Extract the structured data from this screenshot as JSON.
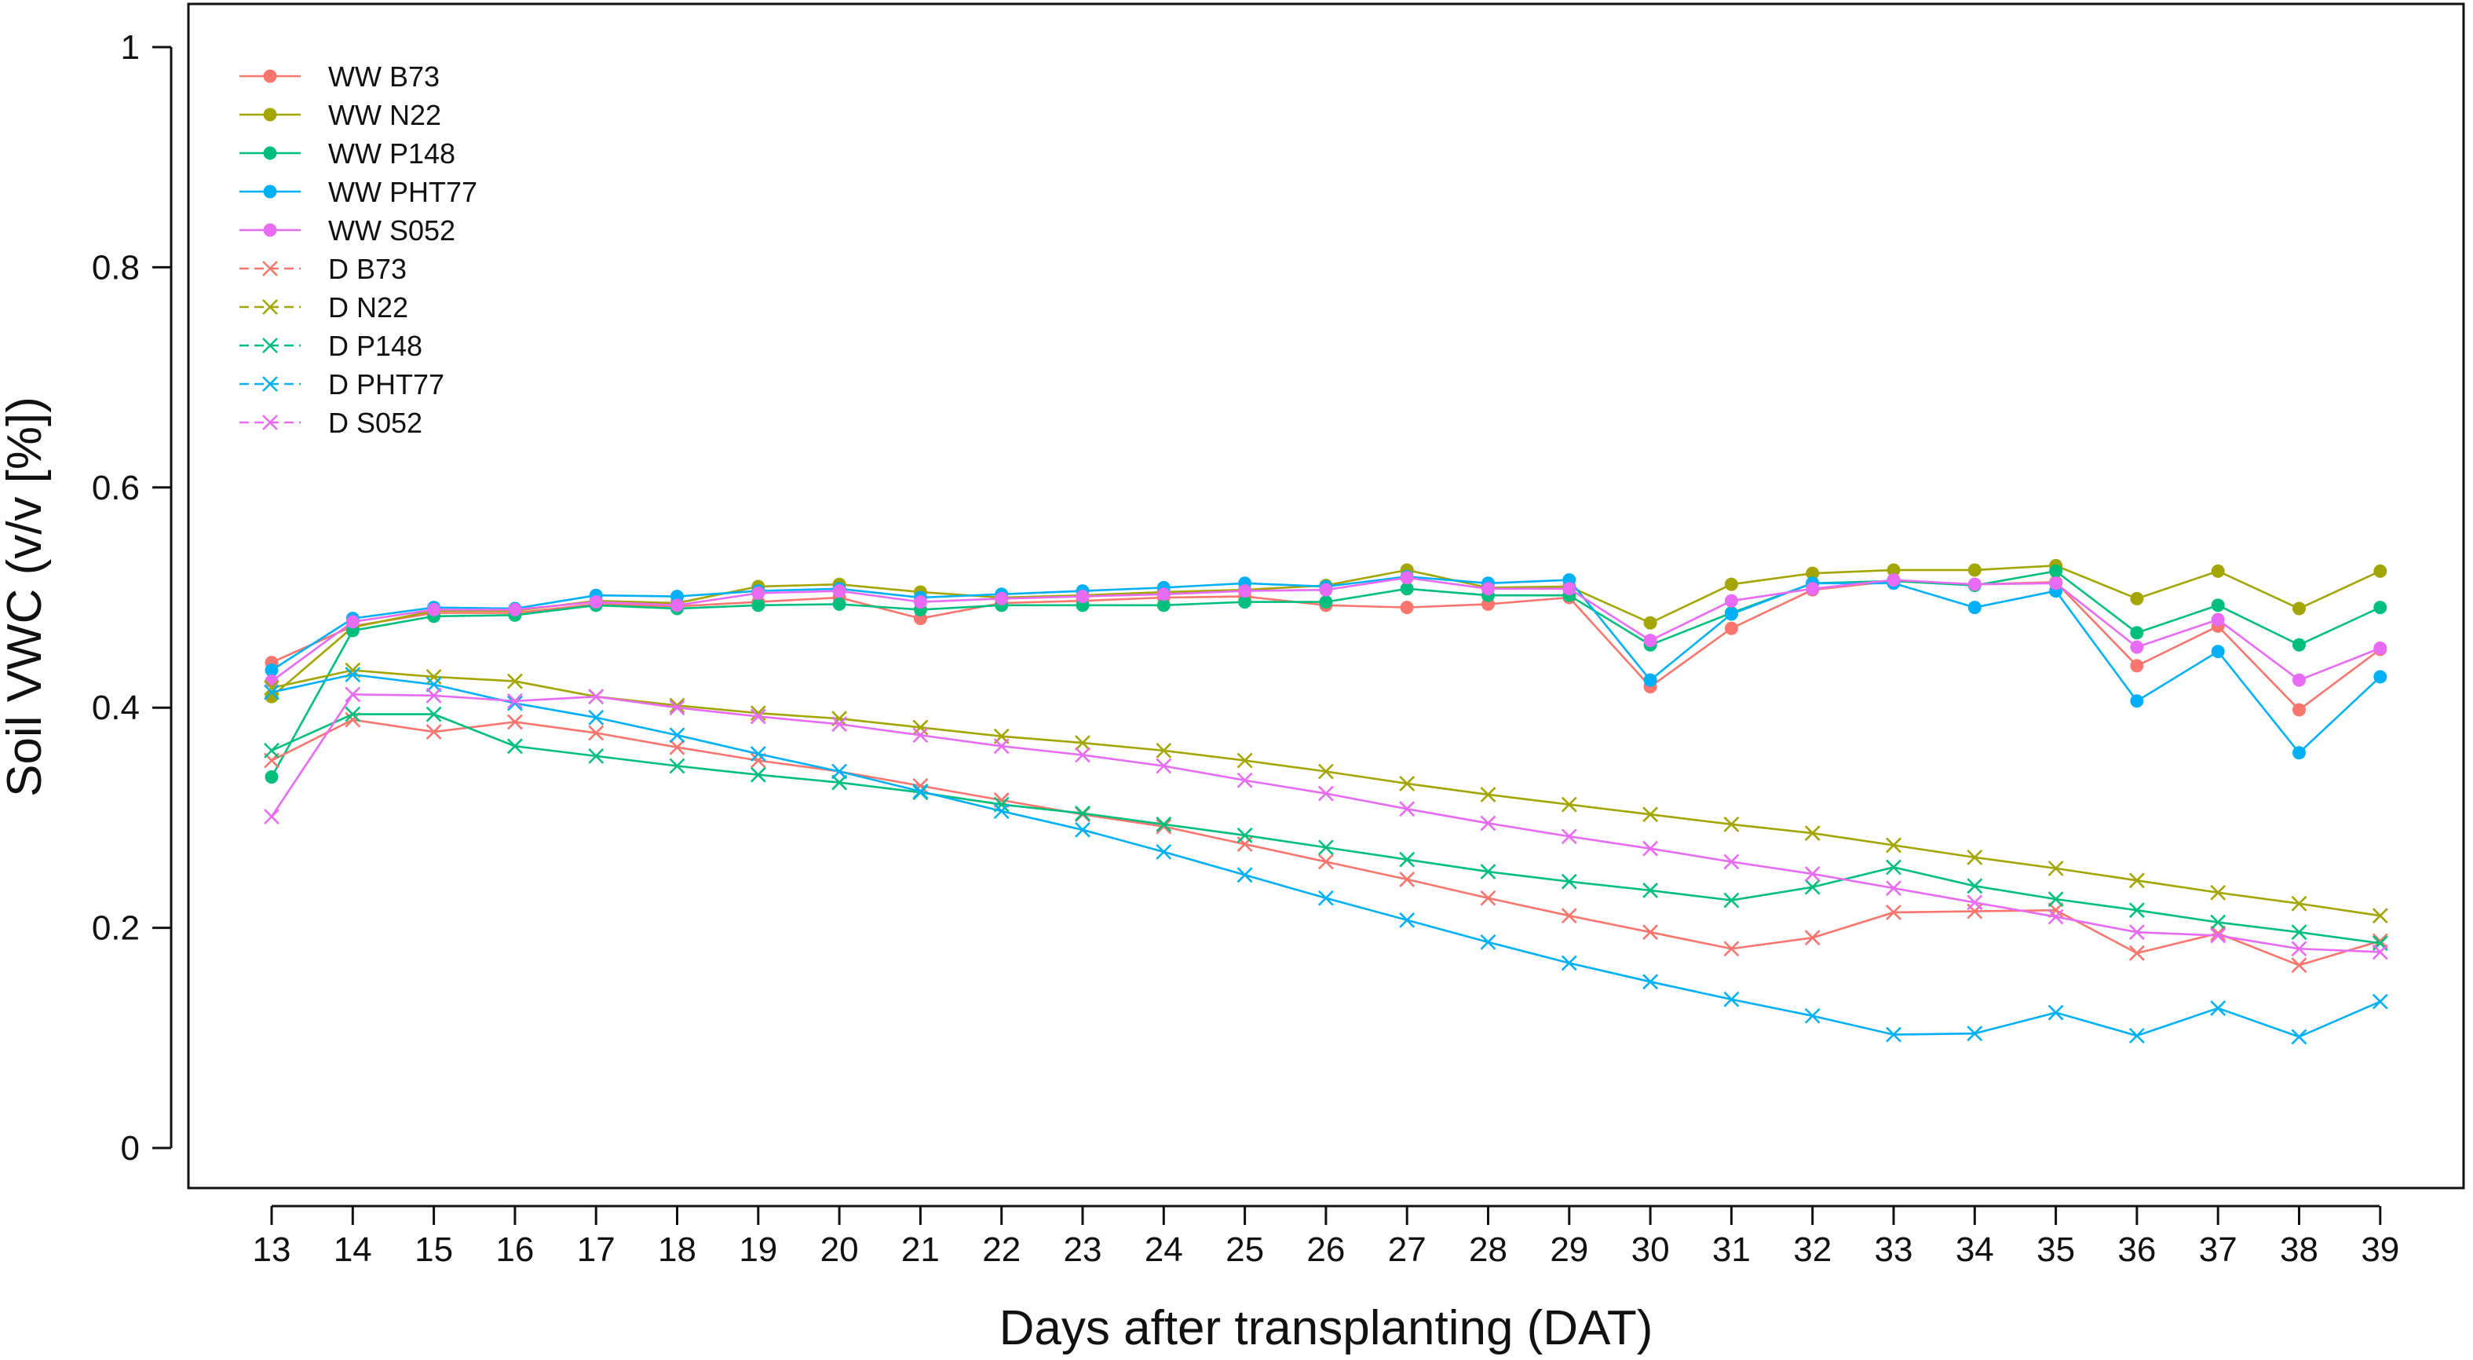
{
  "chart_data": {
    "type": "line",
    "title": "",
    "xlabel": "Days after transplanting (DAT)",
    "ylabel": "Soil VWC (v/v [%])",
    "x": [
      13,
      14,
      15,
      16,
      17,
      18,
      19,
      20,
      21,
      22,
      23,
      24,
      25,
      26,
      27,
      28,
      29,
      30,
      31,
      32,
      33,
      34,
      35,
      36,
      37,
      38,
      39
    ],
    "x_tick_labels": [
      "13",
      "14",
      "15",
      "16",
      "17",
      "18",
      "19",
      "20",
      "21",
      "22",
      "23",
      "24",
      "25",
      "26",
      "27",
      "28",
      "29",
      "30",
      "31",
      "32",
      "33",
      "34",
      "35",
      "36",
      "37",
      "38",
      "39"
    ],
    "ylim": [
      0,
      1
    ],
    "y_ticks": [
      0,
      0.2,
      0.4,
      0.6,
      0.8,
      1
    ],
    "y_tick_labels": [
      "0",
      "0.2",
      "0.4",
      "0.6",
      "0.8",
      "1"
    ],
    "grid": false,
    "legend_position": "top-left",
    "series": [
      {
        "name": "WW B73",
        "color": "#F8766D",
        "marker": "circle",
        "line": "solid",
        "values": [
          0.441,
          0.474,
          0.486,
          0.486,
          0.494,
          0.492,
          0.496,
          0.5,
          0.481,
          0.495,
          0.497,
          0.5,
          0.501,
          0.493,
          0.491,
          0.494,
          0.5,
          0.419,
          0.472,
          0.507,
          0.515,
          0.512,
          0.514,
          0.438,
          0.474,
          0.398,
          0.453
        ]
      },
      {
        "name": "WW N22",
        "color": "#A3A500",
        "marker": "circle",
        "line": "solid",
        "values": [
          0.41,
          0.473,
          0.488,
          0.488,
          0.497,
          0.495,
          0.51,
          0.512,
          0.505,
          0.5,
          0.502,
          0.505,
          0.507,
          0.511,
          0.525,
          0.509,
          0.51,
          0.477,
          0.512,
          0.522,
          0.525,
          0.525,
          0.529,
          0.499,
          0.524,
          0.49,
          0.524
        ]
      },
      {
        "name": "WW P148",
        "color": "#00BF7D",
        "marker": "circle",
        "line": "solid",
        "values": [
          0.337,
          0.47,
          0.483,
          0.484,
          0.493,
          0.49,
          0.493,
          0.494,
          0.489,
          0.493,
          0.493,
          0.493,
          0.496,
          0.496,
          0.508,
          0.502,
          0.502,
          0.457,
          0.486,
          0.513,
          0.515,
          0.511,
          0.524,
          0.468,
          0.493,
          0.457,
          0.491
        ]
      },
      {
        "name": "WW PHT77",
        "color": "#00B0F6",
        "marker": "circle",
        "line": "solid",
        "values": [
          0.434,
          0.481,
          0.491,
          0.49,
          0.502,
          0.501,
          0.506,
          0.508,
          0.5,
          0.503,
          0.506,
          0.509,
          0.513,
          0.51,
          0.519,
          0.513,
          0.516,
          0.425,
          0.485,
          0.513,
          0.513,
          0.491,
          0.506,
          0.406,
          0.451,
          0.359,
          0.428
        ]
      },
      {
        "name": "WW S052",
        "color": "#E76BF3",
        "marker": "circle",
        "line": "solid",
        "values": [
          0.424,
          0.478,
          0.489,
          0.489,
          0.496,
          0.493,
          0.504,
          0.506,
          0.496,
          0.499,
          0.501,
          0.503,
          0.506,
          0.507,
          0.518,
          0.508,
          0.508,
          0.461,
          0.497,
          0.508,
          0.516,
          0.512,
          0.513,
          0.455,
          0.48,
          0.425,
          0.454
        ]
      },
      {
        "name": "D B73",
        "color": "#F8766D",
        "marker": "x",
        "line": "dashed",
        "values": [
          0.352,
          0.389,
          0.378,
          0.387,
          0.377,
          0.364,
          0.352,
          0.342,
          0.329,
          0.316,
          0.303,
          0.292,
          0.276,
          0.26,
          0.244,
          0.227,
          0.211,
          0.196,
          0.181,
          0.191,
          0.214,
          0.215,
          0.216,
          0.177,
          0.195,
          0.166,
          0.188
        ]
      },
      {
        "name": "D N22",
        "color": "#A3A500",
        "marker": "x",
        "line": "dashed",
        "values": [
          0.418,
          0.434,
          0.428,
          0.424,
          0.41,
          0.402,
          0.395,
          0.39,
          0.382,
          0.374,
          0.368,
          0.361,
          0.352,
          0.342,
          0.331,
          0.321,
          0.312,
          0.303,
          0.294,
          0.286,
          0.275,
          0.264,
          0.254,
          0.243,
          0.232,
          0.222,
          0.211
        ]
      },
      {
        "name": "D P148",
        "color": "#00BF7D",
        "marker": "x",
        "line": "dashed",
        "values": [
          0.361,
          0.394,
          0.394,
          0.365,
          0.356,
          0.347,
          0.339,
          0.332,
          0.323,
          0.312,
          0.304,
          0.294,
          0.284,
          0.273,
          0.262,
          0.251,
          0.242,
          0.234,
          0.225,
          0.237,
          0.255,
          0.238,
          0.226,
          0.216,
          0.205,
          0.196,
          0.186
        ]
      },
      {
        "name": "D PHT77",
        "color": "#00B0F6",
        "marker": "x",
        "line": "dashed",
        "values": [
          0.414,
          0.43,
          0.421,
          0.404,
          0.391,
          0.375,
          0.358,
          0.342,
          0.324,
          0.306,
          0.289,
          0.269,
          0.248,
          0.227,
          0.207,
          0.187,
          0.168,
          0.151,
          0.135,
          0.12,
          0.103,
          0.104,
          0.123,
          0.102,
          0.127,
          0.101,
          0.133
        ]
      },
      {
        "name": "D S052",
        "color": "#E76BF3",
        "marker": "x",
        "line": "dashed",
        "values": [
          0.301,
          0.412,
          0.411,
          0.406,
          0.41,
          0.4,
          0.392,
          0.385,
          0.375,
          0.365,
          0.357,
          0.347,
          0.334,
          0.322,
          0.308,
          0.295,
          0.283,
          0.272,
          0.26,
          0.249,
          0.236,
          0.223,
          0.21,
          0.196,
          0.193,
          0.181,
          0.178
        ]
      }
    ]
  }
}
